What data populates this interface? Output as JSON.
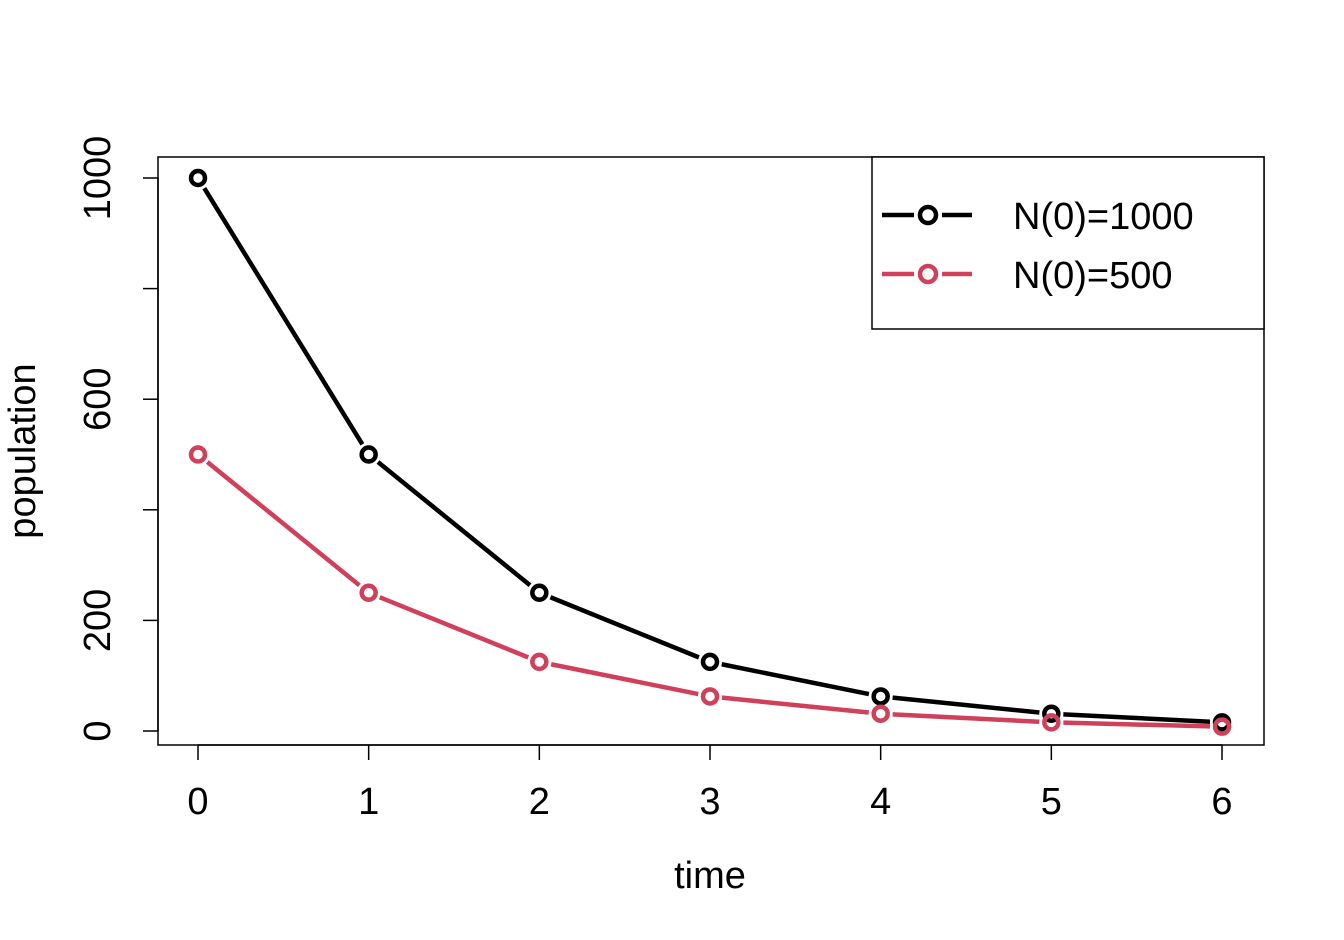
{
  "chart_data": {
    "type": "line",
    "title": "",
    "xlabel": "time",
    "ylabel": "population",
    "x": [
      0,
      1,
      2,
      3,
      4,
      5,
      6
    ],
    "xlim": [
      0,
      6
    ],
    "ylim": [
      0,
      1000
    ],
    "x_ticks": [
      0,
      1,
      2,
      3,
      4,
      5,
      6
    ],
    "y_ticks": [
      0,
      200,
      400,
      600,
      800,
      1000
    ],
    "y_tick_labels": [
      "0",
      "200",
      "",
      "600",
      "",
      "1000"
    ],
    "grid": false,
    "legend_position": "top-right",
    "series": [
      {
        "name": "N(0)=1000",
        "color": "#000000",
        "marker": "open-circle",
        "values": [
          1000,
          500,
          250,
          125,
          62.5,
          31.25,
          15.625
        ]
      },
      {
        "name": "N(0)=500",
        "color": "#d0405a",
        "marker": "open-circle",
        "values": [
          500,
          250,
          125,
          62.5,
          31.25,
          15.625,
          7.8125
        ]
      }
    ]
  }
}
